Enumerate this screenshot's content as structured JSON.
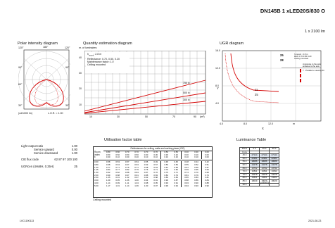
{
  "header": {
    "logo": "",
    "title": "DN145B 1 xLED20S/830 O",
    "subtitle": "1 x 2100 lm"
  },
  "polar": {
    "title": "Polar intensity diagram",
    "angles": {
      "left_top": "120°",
      "top": "180°",
      "right_top": "120°",
      "left_mid": "90°",
      "right_mid": "90°",
      "left_low": "60°",
      "left_bottom": "30°",
      "right_bottom": "30°"
    },
    "footer_unit": "(cd/1000 lm)",
    "footer_lor": "L.O.R. = 1.00"
  },
  "quantity": {
    "title": "Quantity estimation diagram",
    "y_label": "nr. of luminaires",
    "notes": [
      "h",
      "mount",
      ": 2.8 m",
      "Reflectance: 0.70, 0.50, 0.20",
      "Maintenance factor: 1.0",
      "Ceiling mounted"
    ],
    "y_ticks": [
      "40",
      "30",
      "20",
      "10"
    ],
    "x_ticks": [
      "10",
      "30",
      "50",
      "70",
      "90"
    ],
    "x_unit": "(m²)",
    "line_labels": [
      "750 lx",
      "500 lx",
      "300 lx"
    ]
  },
  "ugr": {
    "title": "UGR diagram",
    "y_label": "Y",
    "x_label": "X",
    "y_ticks": [
      "16.0",
      "12.0",
      "8.0",
      "4.0"
    ],
    "x_ticks": [
      "4.0",
      "8.0",
      "12.0",
      "m"
    ],
    "zone_labels": [
      "25",
      "28",
      "11",
      "25"
    ],
    "legend": [
      "h mount : 2.8 m",
      "Refl. 0.70 0.50 0.20",
      "Ceiling mounted",
      "crosswise to the axis",
      "endwise to the axis",
      "Y · Parallel to viewing dir."
    ]
  },
  "utilisation": {
    "title": "Utilisation factor table",
    "header": "Reflectances for ceiling, walls and working plane (CIE)",
    "row_labels": [
      "Room",
      "Index",
      "k"
    ],
    "refl_rows": [
      [
        "0.80",
        "0.80",
        "0.70",
        "0.70",
        "0.70",
        "0.70",
        "0.50",
        "0.50",
        "0.30",
        "0.30",
        "0.00"
      ],
      [
        "0.50",
        "0.50",
        "0.50",
        "0.50",
        "0.30",
        "0.30",
        "0.30",
        "0.10",
        "0.30",
        "0.10",
        "0.00"
      ],
      [
        "0.30",
        "0.10",
        "0.30",
        "0.20",
        "0.10",
        "0.10",
        "0.10",
        "0.10",
        "0.10",
        "0.10",
        "0.00"
      ]
    ],
    "k": [
      "0.60",
      "0.80",
      "1.00",
      "1.25",
      "1.50",
      "2.00",
      "2.50",
      "3.00",
      "4.00",
      "5.00"
    ],
    "rows": [
      [
        "0.58",
        "0.53",
        "0.57",
        "0.54",
        "0.55",
        "0.49",
        "0.48",
        "0.45",
        "0.48",
        "0.44",
        "0.42"
      ],
      [
        "0.68",
        "0.63",
        "0.67",
        "0.63",
        "0.63",
        "0.57",
        "0.56",
        "0.53",
        "0.55",
        "0.52",
        "0.51"
      ],
      [
        "0.77",
        "0.71",
        "0.75",
        "0.71",
        "0.68",
        "0.63",
        "0.61",
        "0.59",
        "0.61",
        "0.59",
        "0.57"
      ],
      [
        "0.84",
        "0.77",
        "0.82",
        "0.79",
        "0.76",
        "0.71",
        "0.70",
        "0.66",
        "0.69",
        "0.65",
        "0.63"
      ],
      [
        "0.92",
        "0.82",
        "0.88",
        "0.84",
        "0.87",
        "0.76",
        "0.75",
        "0.71",
        "0.74",
        "0.70",
        "0.68"
      ],
      [
        "0.99",
        "0.88",
        "0.97",
        "0.91",
        "0.88",
        "0.83",
        "0.82",
        "0.79",
        "0.81",
        "0.79",
        "0.74"
      ],
      [
        "1.05",
        "0.91",
        "1.02",
        "0.97",
        "0.92",
        "0.88",
        "0.86",
        "0.84",
        "0.85",
        "0.83",
        "0.81"
      ],
      [
        "1.09",
        "0.95",
        "1.06",
        "1.00",
        "0.94",
        "0.91",
        "0.90",
        "0.87",
        "0.88",
        "0.86",
        "0.84"
      ],
      [
        "1.14",
        "0.99",
        "1.11",
        "1.04",
        "0.98",
        "0.95",
        "0.93",
        "0.91",
        "0.93",
        "0.90",
        "0.88"
      ],
      [
        "1.17",
        "1.01",
        "1.14",
        "1.06",
        "1.00",
        "0.97",
        "0.96",
        "0.94",
        "0.94",
        "0.93",
        "0.90"
      ]
    ],
    "footer": "Ceiling mounted"
  },
  "luminance": {
    "title": "Luminance Table",
    "head": [
      "Plane",
      "0.0",
      "45.0",
      "90.0"
    ],
    "head2": "Cone",
    "rows": [
      [
        "45.0",
        "27144",
        "27144",
        "27144"
      ],
      [
        "50.0",
        "22381",
        "22381",
        "22381"
      ],
      [
        "55.0",
        "18086",
        "18086",
        "18086"
      ],
      [
        "60.0",
        "13278",
        "13278",
        "13278"
      ],
      [
        "65.0",
        "13732",
        "13732",
        "13732"
      ],
      [
        "70.0",
        "13811",
        "13811",
        "13811"
      ],
      [
        "75.0",
        "13678",
        "13678",
        "13678"
      ],
      [
        "80.0",
        "14421",
        "14421",
        "14421"
      ],
      [
        "85.0",
        "18029",
        "18029",
        "18029"
      ],
      [
        "90.0",
        "",
        "",
        ""
      ]
    ],
    "unit": "(cd/m2)"
  },
  "specs": {
    "light_output_ratio_label": "Light output ratio",
    "light_output_ratio_value": "1.00",
    "service_upward_label": "Service upward",
    "service_upward_value": "0.00",
    "service_downward_label": "Service downward",
    "service_downward_value": "1.00",
    "cie_label": "CIE flux code",
    "cie_value": "62 87 97 100 100",
    "ugr_label": "UGRcen (4Hx8H, 0.25H)",
    "ugr_value": "25"
  },
  "footer": {
    "doc_id": "LVC1190113",
    "date": "2021-08-23"
  }
}
